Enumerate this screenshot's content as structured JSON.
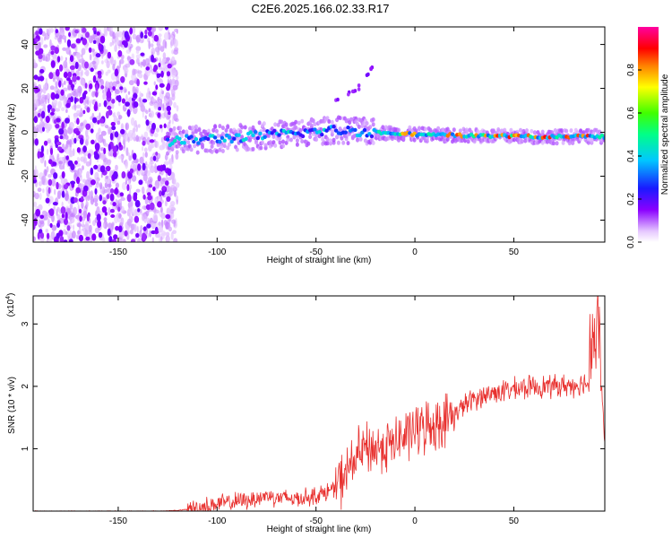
{
  "title": "C2E6.2025.166.02.33.R17",
  "chart_data": [
    {
      "type": "heatmap",
      "xlabel": "Height of straight line (km)",
      "ylabel": "Frequency (Hz)",
      "xlim": [
        -193,
        96
      ],
      "ylim": [
        -50,
        48
      ],
      "xticks": [
        -150,
        -100,
        -50,
        0,
        50
      ],
      "yticks": [
        -40,
        -20,
        0,
        20,
        40
      ],
      "grid": false,
      "colorbar": {
        "label": "Normalized spectral amplitude",
        "ticks": [
          "0.0",
          "0.2",
          "0.4",
          "0.6",
          "0.8"
        ],
        "range": [
          0,
          1
        ]
      },
      "features": [
        {
          "name": "noise",
          "x_range": [
            -193,
            -124
          ],
          "freq_range": [
            -50,
            48
          ]
        },
        {
          "name": "main-ridge",
          "x": [
            -125,
            -100,
            -70,
            -40,
            -20,
            0,
            30,
            60,
            90
          ],
          "freq": [
            -4,
            -3,
            -1,
            1,
            0,
            -1,
            -1.5,
            -2,
            -2
          ]
        },
        {
          "name": "upper-trace",
          "x": [
            -40,
            -32,
            -26,
            -24,
            -18
          ],
          "freq": [
            14,
            18,
            22,
            26,
            35
          ]
        }
      ]
    },
    {
      "type": "line",
      "xlabel": "Height of straight line (km)",
      "ylabel": "SNR (10 * v/v)",
      "multiplier": "(x10",
      "multiplier_exp": "4",
      "multiplier_close": ")",
      "xlim": [
        -193,
        96
      ],
      "ylim": [
        0,
        3.45
      ],
      "xticks": [
        -150,
        -100,
        -50,
        0,
        50
      ],
      "yticks": [
        1,
        2,
        3
      ],
      "grid": false,
      "series": [
        {
          "color": "#e8312f",
          "x": [
            -193,
            -130,
            -120,
            -112,
            -105,
            -100,
            -90,
            -80,
            -75,
            -70,
            -60,
            -50,
            -45,
            -40,
            -35,
            -30,
            -25,
            -20,
            -15,
            -10,
            -5,
            0,
            5,
            10,
            15,
            20,
            25,
            30,
            40,
            50,
            60,
            70,
            80,
            85,
            90,
            93,
            96
          ],
          "values": [
            0,
            0,
            0.01,
            0.04,
            0.08,
            0.12,
            0.15,
            0.2,
            0.25,
            0.22,
            0.2,
            0.25,
            0.3,
            0.38,
            0.6,
            0.85,
            1.0,
            1.0,
            1.05,
            1.1,
            1.2,
            1.3,
            1.35,
            1.4,
            1.45,
            1.55,
            1.7,
            1.8,
            1.9,
            1.95,
            2.0,
            2.0,
            2.02,
            2.05,
            2.05,
            2.4,
            1.2
          ]
        }
      ]
    }
  ]
}
